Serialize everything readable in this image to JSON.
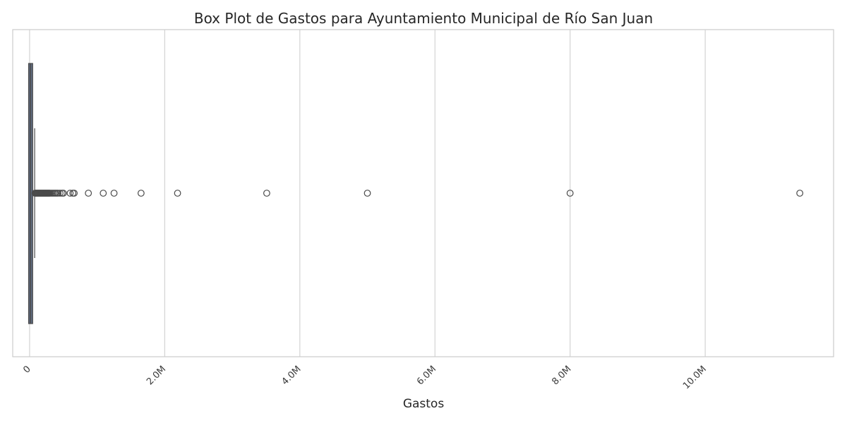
{
  "chart_data": {
    "type": "box",
    "orientation": "horizontal",
    "title": "Box Plot de Gastos para Ayuntamiento Municipal de Río San Juan",
    "xlabel": "Gastos",
    "ylabel": "",
    "xlim": [
      -250000,
      11900000
    ],
    "grid": "vertical",
    "tick_values": [
      0,
      2000000,
      4000000,
      6000000,
      8000000,
      10000000
    ],
    "tick_labels": [
      "0",
      "2.0M",
      "4.0M",
      "6.0M",
      "8.0M",
      "10.0M"
    ],
    "box": {
      "q1": 1000,
      "median": 12000,
      "q3": 30000,
      "whisker_low": 0,
      "whisker_high": 75000
    },
    "outliers": [
      80000,
      90000,
      100000,
      110000,
      120000,
      130000,
      140000,
      150000,
      160000,
      170000,
      180000,
      190000,
      200000,
      210000,
      220000,
      230000,
      240000,
      250000,
      260000,
      270000,
      280000,
      290000,
      300000,
      320000,
      340000,
      360000,
      380000,
      400000,
      420000,
      450000,
      480000,
      500000,
      600000,
      640000,
      660000,
      870000,
      1090000,
      1250000,
      1650000,
      2190000,
      3510000,
      5000000,
      8000000,
      11400000
    ],
    "colors": {
      "box_fill": "#5f6b80",
      "box_edge": "#4a4a4a",
      "outlier_edge": "#4a4a4a",
      "grid": "#d3d3d3",
      "frame": "#cccccc"
    }
  }
}
